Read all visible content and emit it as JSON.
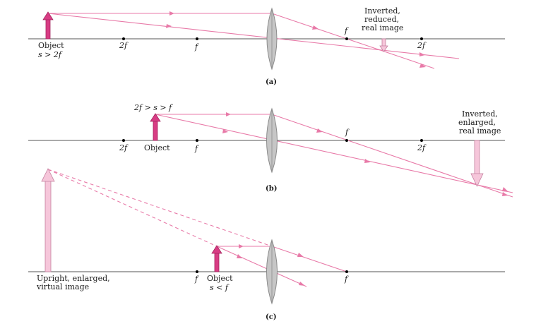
{
  "panels": {
    "a": {
      "caption": "(a)",
      "focal_label": "f",
      "two_f_label": "2f",
      "object_label": "Object",
      "object_condition": "s > 2f",
      "image_label_lines": [
        "Inverted,",
        "reduced,",
        "real image"
      ]
    },
    "b": {
      "caption": "(b)",
      "focal_label": "f",
      "two_f_label": "2f",
      "object_label": "Object",
      "object_condition": "2f > s > f",
      "image_label_lines": [
        "Inverted,",
        "enlarged,",
        "real image"
      ]
    },
    "c": {
      "caption": "(c)",
      "focal_label": "f",
      "object_label": "Object",
      "object_condition": "s < f",
      "image_label_lines": [
        "Upright, enlarged,",
        "virtual image"
      ]
    }
  },
  "colors": {
    "ray": "#e87aa8",
    "object_arrow": "#d83c84",
    "image_arrow": "#f6c6da",
    "lens": "#c6c6c6",
    "axis": "#555555"
  }
}
